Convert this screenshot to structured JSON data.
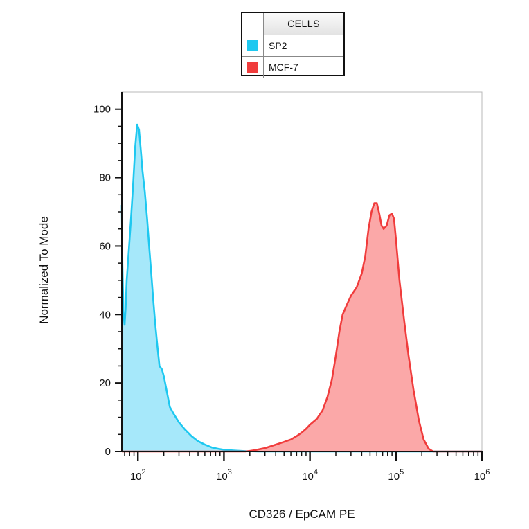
{
  "legend": {
    "header": "CELLS",
    "items": [
      {
        "label": "SP2",
        "color": "#1EC8F0"
      },
      {
        "label": "MCF-7",
        "color": "#F03C3C"
      }
    ]
  },
  "chart_data": {
    "type": "area",
    "xlabel": "CD326 / EpCAM  PE",
    "ylabel": "Normalized To Mode",
    "x_scale": "log",
    "xlim": [
      65,
      1000000
    ],
    "ylim": [
      0,
      105
    ],
    "x_ticks": [
      100,
      1000,
      10000,
      100000,
      1000000
    ],
    "x_tick_labels": [
      {
        "base": "10",
        "exp": "2"
      },
      {
        "base": "10",
        "exp": "3"
      },
      {
        "base": "10",
        "exp": "4"
      },
      {
        "base": "10",
        "exp": "5"
      },
      {
        "base": "10",
        "exp": "6"
      }
    ],
    "y_ticks": [
      0,
      20,
      40,
      60,
      80,
      100
    ],
    "y_tick_labels": [
      "0",
      "20",
      "40",
      "60",
      "80",
      "100"
    ],
    "grid": false,
    "series": [
      {
        "name": "SP2",
        "color": "#1EC8F0",
        "fill": "#A6E8FA",
        "points": [
          [
            65,
            72
          ],
          [
            66,
            55
          ],
          [
            68,
            40
          ],
          [
            70,
            37
          ],
          [
            72,
            42
          ],
          [
            74,
            50
          ],
          [
            78,
            58
          ],
          [
            83,
            68
          ],
          [
            88,
            78
          ],
          [
            93,
            89
          ],
          [
            98,
            95.5
          ],
          [
            103,
            94
          ],
          [
            108,
            88
          ],
          [
            113,
            82
          ],
          [
            120,
            76
          ],
          [
            128,
            68
          ],
          [
            135,
            60
          ],
          [
            143,
            52
          ],
          [
            150,
            45
          ],
          [
            158,
            38
          ],
          [
            168,
            31
          ],
          [
            178,
            25
          ],
          [
            190,
            24
          ],
          [
            200,
            22
          ],
          [
            215,
            18
          ],
          [
            235,
            13
          ],
          [
            260,
            11
          ],
          [
            300,
            8.5
          ],
          [
            350,
            6.5
          ],
          [
            420,
            4.5
          ],
          [
            500,
            3.0
          ],
          [
            600,
            2.0
          ],
          [
            720,
            1.2
          ],
          [
            850,
            0.8
          ],
          [
            1000,
            0.5
          ],
          [
            1300,
            0.3
          ],
          [
            1800,
            0.1
          ],
          [
            2500,
            0
          ],
          [
            1000000,
            0
          ]
        ]
      },
      {
        "name": "MCF-7",
        "color": "#F03C3C",
        "fill": "#FBA8A8",
        "points": [
          [
            65,
            0
          ],
          [
            1800,
            0
          ],
          [
            2300,
            0.4
          ],
          [
            3000,
            1.0
          ],
          [
            4000,
            2.0
          ],
          [
            5000,
            2.8
          ],
          [
            6000,
            3.5
          ],
          [
            7000,
            4.5
          ],
          [
            8000,
            5.5
          ],
          [
            9000,
            6.6
          ],
          [
            10000,
            7.8
          ],
          [
            12000,
            9.5
          ],
          [
            14000,
            12
          ],
          [
            16000,
            16
          ],
          [
            18000,
            21
          ],
          [
            20000,
            28
          ],
          [
            22000,
            35
          ],
          [
            24000,
            40
          ],
          [
            27000,
            43
          ],
          [
            30000,
            45.5
          ],
          [
            35000,
            48
          ],
          [
            40000,
            52
          ],
          [
            44000,
            57
          ],
          [
            48000,
            65
          ],
          [
            52000,
            70
          ],
          [
            56000,
            72.5
          ],
          [
            60000,
            72.5
          ],
          [
            64000,
            69.5
          ],
          [
            68000,
            66
          ],
          [
            72000,
            65
          ],
          [
            78000,
            66
          ],
          [
            84000,
            69
          ],
          [
            90000,
            69.5
          ],
          [
            95000,
            68
          ],
          [
            100000,
            62
          ],
          [
            110000,
            50
          ],
          [
            125000,
            38
          ],
          [
            140000,
            28
          ],
          [
            160000,
            18
          ],
          [
            185000,
            9
          ],
          [
            210000,
            3.5
          ],
          [
            240000,
            0.8
          ],
          [
            270000,
            0
          ],
          [
            1000000,
            0
          ]
        ]
      }
    ]
  }
}
